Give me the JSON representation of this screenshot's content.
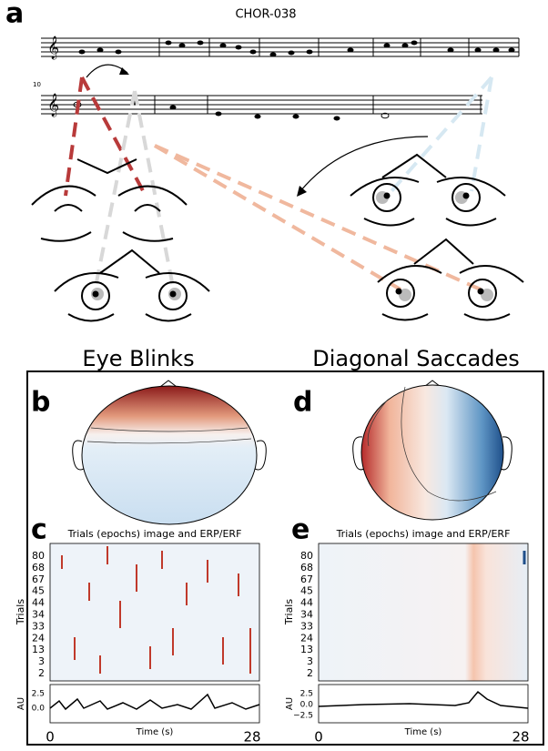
{
  "panel_a": {
    "label": "a",
    "title": "CHOR-038",
    "measure_number": "10",
    "captions": [
      "Eye Blinks",
      "Diagonal Saccades"
    ]
  },
  "left": {
    "topomap_label": "b",
    "image_label": "c",
    "image_title": "Trials (epochs) image and ERP/ERF",
    "y_axis_label": "Trials",
    "trial_ticks": [
      "80",
      "68",
      "67",
      "45",
      "44",
      "34",
      "33",
      "24",
      "13",
      "3",
      "2"
    ],
    "erp_axis_label": "AU",
    "erp_ticks": [
      "2.5",
      "0.0"
    ],
    "x_start": "0",
    "x_axis_label": "Time (s)",
    "x_end": "28"
  },
  "right": {
    "topomap_label": "d",
    "image_label": "e",
    "image_title": "Trials (epochs) image and ERP/ERF",
    "y_axis_label": "Trials",
    "trial_ticks": [
      "80",
      "68",
      "67",
      "45",
      "44",
      "34",
      "33",
      "24",
      "13",
      "3",
      "2"
    ],
    "erp_axis_label": "AU",
    "erp_ticks": [
      "2.5",
      "0.0",
      "−2.5"
    ],
    "x_start": "0",
    "x_axis_label": "Time (s)",
    "x_end": "28"
  }
}
